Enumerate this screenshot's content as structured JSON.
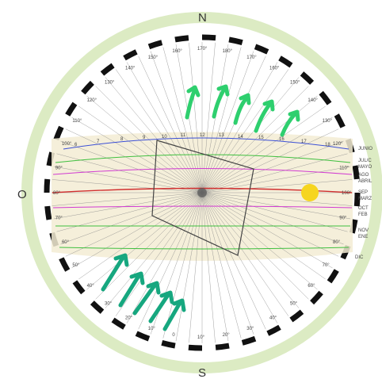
{
  "cardinals": {
    "north": "N",
    "south": "S",
    "west": "O"
  },
  "rim_degrees": [
    "170°",
    "180°",
    "170°",
    "160°",
    "150°",
    "140°",
    "130°",
    "120°",
    "110°",
    "100°",
    "90°",
    "80°",
    "70°",
    "60°",
    "50°",
    "40°",
    "30°",
    "20°",
    "10°",
    "0",
    "10°",
    "20°",
    "30°",
    "40°",
    "50°",
    "60°",
    "70°",
    "80°",
    "90°",
    "100°",
    "110°",
    "120°",
    "130°",
    "140°",
    "150°",
    "160°"
  ],
  "month_labels": [
    {
      "text": "JUNIO"
    },
    {
      "text": "JUL/C"
    },
    {
      "text": "MAYO"
    },
    {
      "text": "AGO"
    },
    {
      "text": "ABRIL"
    },
    {
      "text": "SEP"
    },
    {
      "text": "MARZ"
    },
    {
      "text": "OCT"
    },
    {
      "text": "FEB"
    },
    {
      "text": "NOV"
    },
    {
      "text": "ENE"
    },
    {
      "text": "DIC"
    }
  ],
  "hour_labels": [
    "12",
    "13",
    "14",
    "15",
    "16",
    "17",
    "18",
    "11",
    "10",
    "9",
    "8",
    "7",
    "6"
  ],
  "colors": {
    "outer_ring": "#dcebc3",
    "band_fill": "#f3ecd3",
    "sun": "#f6d51f",
    "wind_arrow_top": "#2ecf6e",
    "wind_arrow_bottom": "#16a77f",
    "line_june": "#3b4fd6",
    "line_green": "#3fbf3f",
    "line_magenta": "#d13bd1",
    "line_red": "#d12f2f"
  },
  "icons": {
    "sun": "sun-icon",
    "wind": "wind-arrow-icon"
  }
}
